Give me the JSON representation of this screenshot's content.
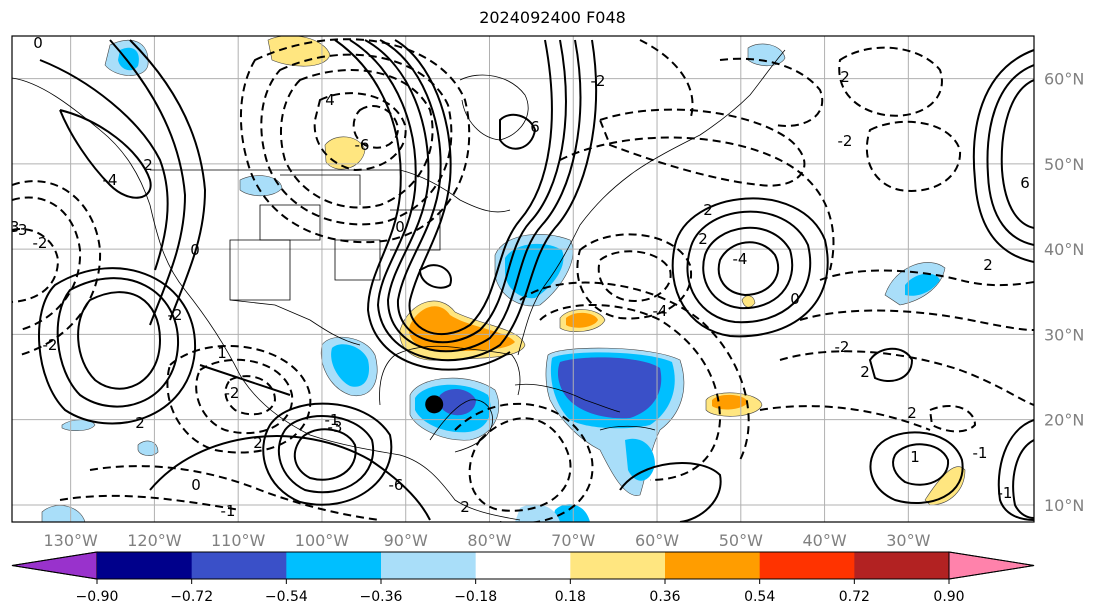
{
  "title": "2024092400 F048",
  "map": {
    "projection": "PlateCarree",
    "lon_range": [
      -137,
      -15
    ],
    "lat_range": [
      8,
      65
    ],
    "lon_ticks": [
      "130°W",
      "120°W",
      "110°W",
      "100°W",
      "90°W",
      "80°W",
      "70°W",
      "60°W",
      "50°W",
      "40°W",
      "30°W"
    ],
    "lat_ticks": [
      "60°N",
      "50°N",
      "40°N",
      "30°N",
      "20°N",
      "10°N"
    ],
    "gridlines": true,
    "marker": {
      "name": "storm-center-marker",
      "lon": -86.6,
      "lat": 21.8
    },
    "contour_labels": [
      "0",
      "-3",
      "-2",
      "-4",
      "2",
      "-2",
      "-2",
      "0",
      "1",
      "-1",
      "-2",
      "2",
      "-3",
      "0",
      "-1",
      "2",
      "4",
      "-6",
      "0",
      "6",
      "-2",
      "-4",
      "2",
      "2",
      "-4",
      "0",
      "-2",
      "2",
      "1",
      "-1",
      "-1",
      "2",
      "6",
      "2",
      "-2",
      "2",
      "-6",
      "2",
      "-3"
    ]
  },
  "colorbar": {
    "ticks": [
      "−0.90",
      "−0.72",
      "−0.54",
      "−0.36",
      "−0.18",
      "0.18",
      "0.36",
      "0.54",
      "0.72",
      "0.90"
    ],
    "colors": [
      "#9932cc",
      "#00008b",
      "#3a50c8",
      "#00bfff",
      "#a9def9",
      "#ffffff",
      "#ffe680",
      "#ff9d00",
      "#ff3300",
      "#b22222",
      "#ff82ab"
    ]
  },
  "shading_colors": {
    "light_blue": "#a9def9",
    "mid_blue": "#00bfff",
    "dark_blue": "#3a50c8",
    "light_yellow": "#ffe680",
    "orange": "#ff9d00"
  }
}
